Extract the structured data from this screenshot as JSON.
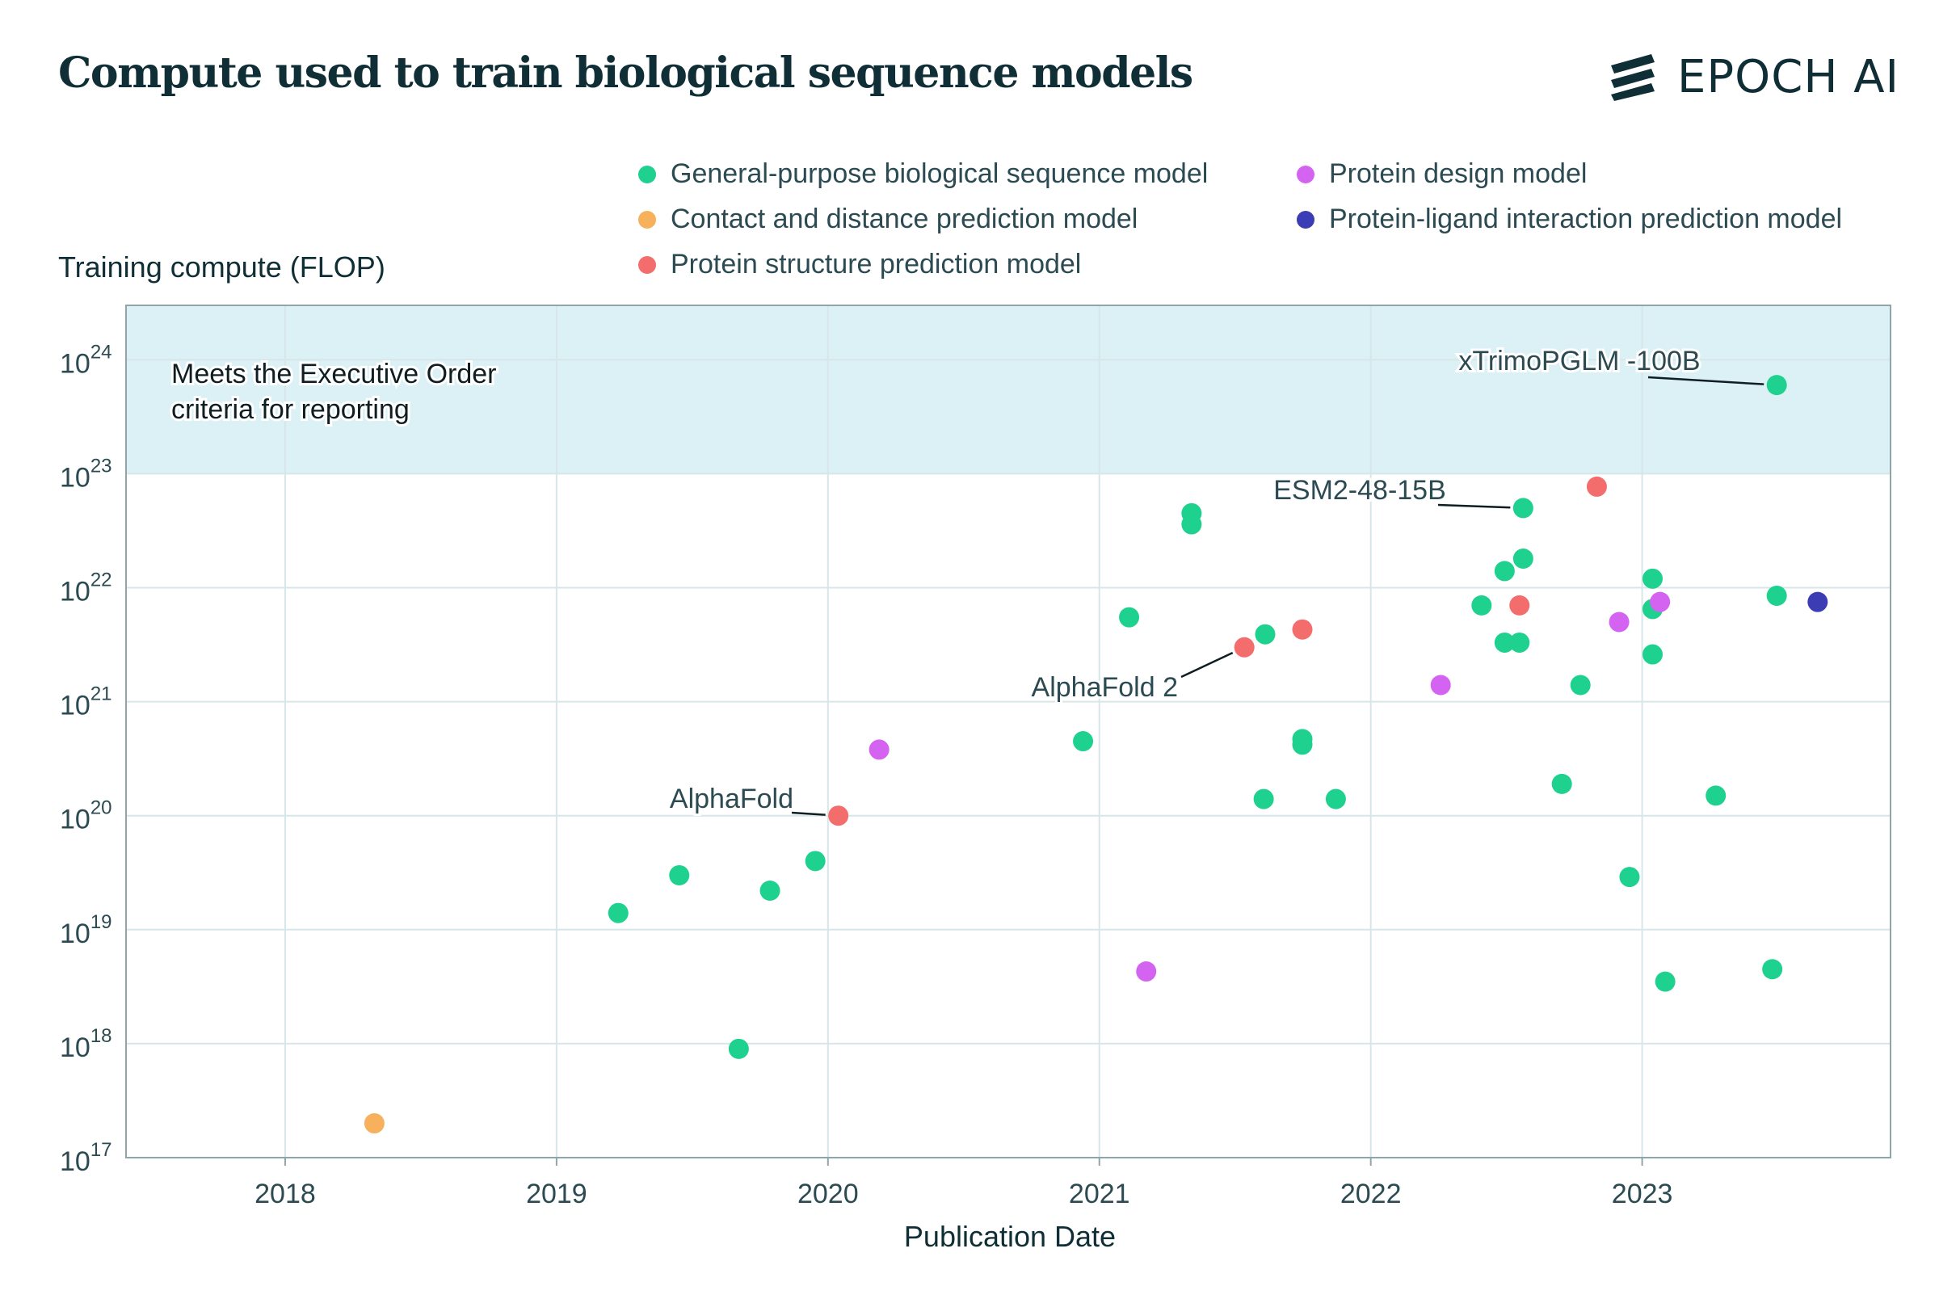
{
  "title": "Compute used to train biological sequence models",
  "logo": {
    "text": "EPOCH AI",
    "icon": "epoch-stripes-icon"
  },
  "colors": {
    "General-purpose biological sequence model": "#1fd18e",
    "Protein design model": "#d563f2",
    "Contact and distance prediction model": "#f7b05b",
    "Protein-ligand interaction prediction model": "#3c3db5",
    "Protein structure prediction model": "#f46d6d",
    "threshold_region": "#dbf1f6",
    "grid": "#d7e6e8",
    "axis": "#8fa5ab"
  },
  "legend": [
    "General-purpose biological sequence model",
    "Protein design model",
    "Contact and distance prediction model",
    "Protein-ligand interaction prediction model",
    "Protein structure prediction model"
  ],
  "threshold_note": [
    "Meets the Executive Order",
    "criteria for reporting"
  ],
  "chart_data": {
    "type": "scatter",
    "title": "Compute used to train biological sequence models",
    "xlabel": "Publication Date",
    "ylabel": "Training compute (FLOP)",
    "x_scale": "date",
    "y_scale": "log",
    "xlim": [
      "2017-06-01",
      "2023-12-01"
    ],
    "ylim": [
      1e+17,
      3e+24
    ],
    "x_ticks": [
      "2018",
      "2019",
      "2020",
      "2021",
      "2022",
      "2023"
    ],
    "y_ticks": [
      1e+17,
      1e+18,
      1e+19,
      1e+20,
      1e+21,
      1e+22,
      1e+23,
      1e+24
    ],
    "y_tick_labels": [
      {
        "base": "10",
        "exp": "17"
      },
      {
        "base": "10",
        "exp": "18"
      },
      {
        "base": "10",
        "exp": "19"
      },
      {
        "base": "10",
        "exp": "20"
      },
      {
        "base": "10",
        "exp": "21"
      },
      {
        "base": "10",
        "exp": "22"
      },
      {
        "base": "10",
        "exp": "23"
      },
      {
        "base": "10",
        "exp": "24"
      }
    ],
    "grid": true,
    "legend_position": "top",
    "threshold": 1e+23,
    "series": [
      {
        "name": "General-purpose biological sequence model",
        "points": [
          {
            "x": "2019-03-25",
            "y": 1.4e+19
          },
          {
            "x": "2019-06-15",
            "y": 3e+19
          },
          {
            "x": "2019-09-03",
            "y": 9e+17
          },
          {
            "x": "2019-10-15",
            "y": 2.2e+19
          },
          {
            "x": "2019-12-15",
            "y": 4e+19
          },
          {
            "x": "2020-12-10",
            "y": 4.5e+20
          },
          {
            "x": "2021-02-10",
            "y": 5.5e+21
          },
          {
            "x": "2021-05-05",
            "y": 4.5e+22
          },
          {
            "x": "2021-05-05",
            "y": 3.6e+22
          },
          {
            "x": "2021-08-10",
            "y": 1.4e+20
          },
          {
            "x": "2021-08-12",
            "y": 3.9e+21
          },
          {
            "x": "2021-10-01",
            "y": 4.7e+20
          },
          {
            "x": "2021-10-01",
            "y": 4.2e+20
          },
          {
            "x": "2021-11-15",
            "y": 1.4e+20
          },
          {
            "x": "2022-05-30",
            "y": 7e+21
          },
          {
            "x": "2022-06-30",
            "y": 1.4e+22
          },
          {
            "x": "2022-06-30",
            "y": 3.3e+21
          },
          {
            "x": "2022-07-20",
            "y": 3.3e+21
          },
          {
            "x": "2022-07-25",
            "y": 1.8e+22
          },
          {
            "x": "2022-07-25",
            "y": 5e+22
          },
          {
            "x": "2022-09-15",
            "y": 1.9e+20
          },
          {
            "x": "2022-10-10",
            "y": 1.4e+21
          },
          {
            "x": "2022-12-15",
            "y": 2.9e+19
          },
          {
            "x": "2023-01-15",
            "y": 1.2e+22
          },
          {
            "x": "2023-01-15",
            "y": 6.5e+21
          },
          {
            "x": "2023-01-15",
            "y": 2.6e+21
          },
          {
            "x": "2023-02-01",
            "y": 3.5e+18
          },
          {
            "x": "2023-04-10",
            "y": 1.5e+20
          },
          {
            "x": "2023-06-25",
            "y": 4.5e+18
          },
          {
            "x": "2023-07-01",
            "y": 8.5e+21
          },
          {
            "x": "2023-07-01",
            "y": 6e+23
          }
        ]
      },
      {
        "name": "Protein design model",
        "points": [
          {
            "x": "2020-03-10",
            "y": 3.8e+20
          },
          {
            "x": "2021-03-05",
            "y": 4.3e+18
          },
          {
            "x": "2022-04-05",
            "y": 1.4e+21
          },
          {
            "x": "2022-12-01",
            "y": 5e+21
          },
          {
            "x": "2023-01-25",
            "y": 7.5e+21
          }
        ]
      },
      {
        "name": "Contact and distance prediction model",
        "points": [
          {
            "x": "2018-05-01",
            "y": 2e+17
          }
        ]
      },
      {
        "name": "Protein-ligand interaction prediction model",
        "points": [
          {
            "x": "2023-08-25",
            "y": 7.5e+21
          }
        ]
      },
      {
        "name": "Protein structure prediction model",
        "points": [
          {
            "x": "2020-01-15",
            "y": 1e+20
          },
          {
            "x": "2021-07-15",
            "y": 3e+21
          },
          {
            "x": "2021-10-01",
            "y": 4.3e+21
          },
          {
            "x": "2022-07-20",
            "y": 7e+21
          },
          {
            "x": "2022-11-01",
            "y": 7.7e+22
          }
        ]
      }
    ],
    "annotations": [
      {
        "text": "xTrimoPGLM -100B",
        "series": "General-purpose biological sequence model",
        "point_x": "2023-07-01",
        "point_y": 6e+23
      },
      {
        "text": "ESM2-48-15B",
        "series": "General-purpose biological sequence model",
        "point_x": "2022-07-25",
        "point_y": 5e+22
      },
      {
        "text": "AlphaFold 2",
        "series": "Protein structure prediction model",
        "point_x": "2021-07-15",
        "point_y": 3e+21
      },
      {
        "text": "AlphaFold",
        "series": "Protein structure prediction model",
        "point_x": "2020-01-15",
        "point_y": 1e+20
      }
    ]
  }
}
